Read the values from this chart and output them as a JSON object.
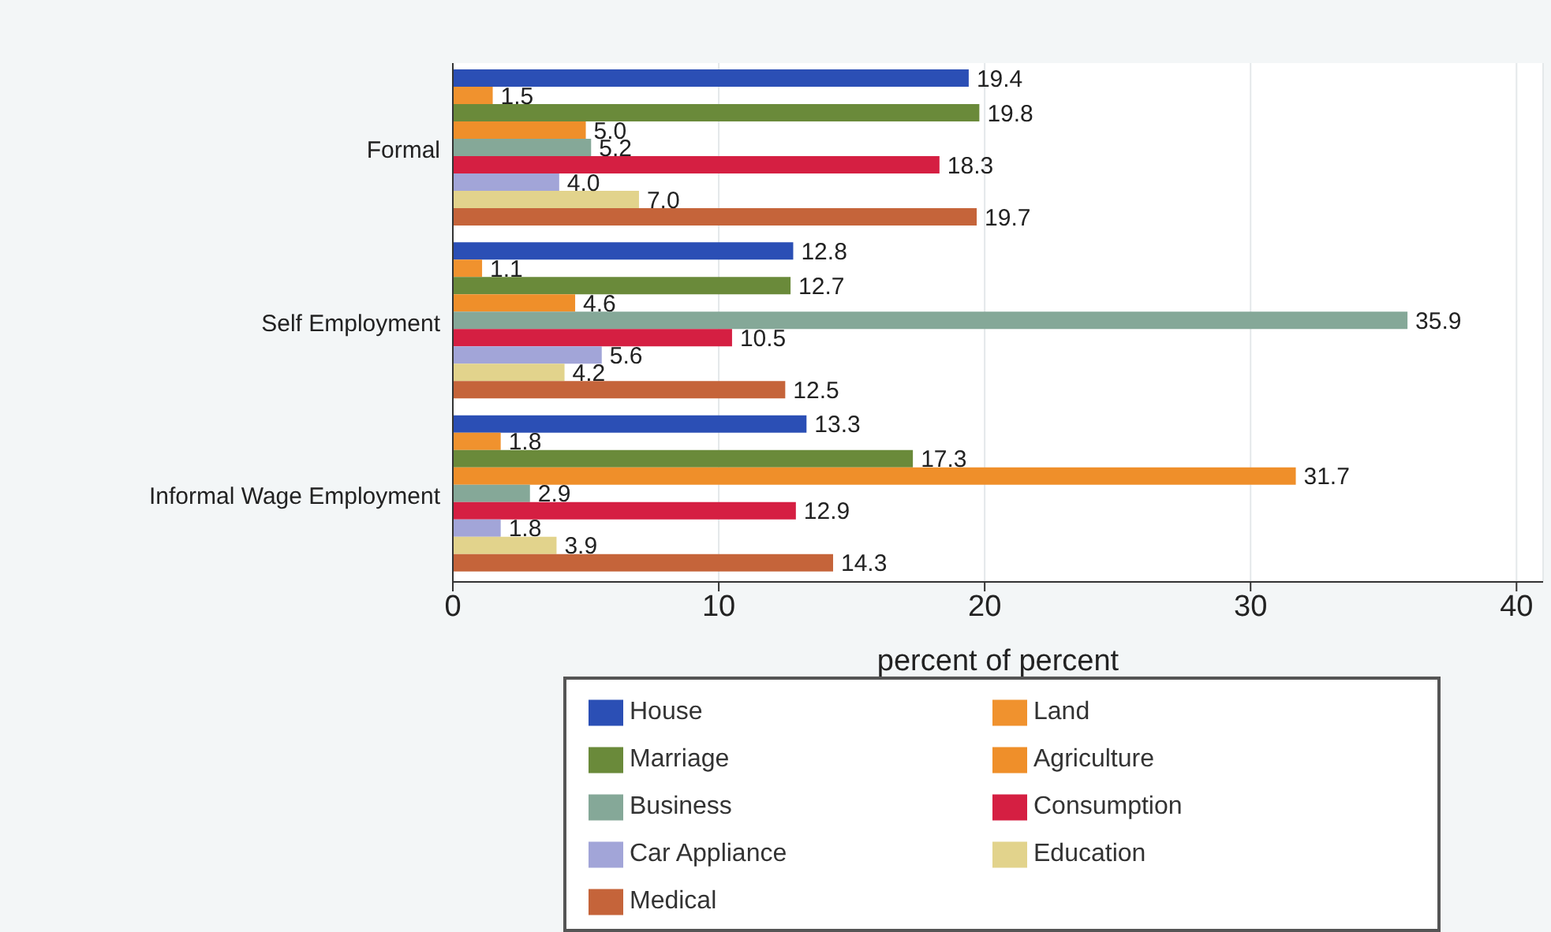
{
  "chart_data": {
    "type": "bar",
    "orientation": "horizontal",
    "categories": [
      "Formal",
      "Self Employment",
      "Informal Wage Employment"
    ],
    "xlabel": "percent of percent",
    "xlim": [
      0,
      41
    ],
    "xticks": [
      0,
      10,
      20,
      30,
      40
    ],
    "grid": "x",
    "legend": "bottom",
    "series": [
      {
        "name": "House",
        "color": "#2b4fb5",
        "values": [
          19.4,
          12.8,
          13.3
        ],
        "value_labels": [
          "19.4",
          "12.8",
          "13.3"
        ]
      },
      {
        "name": "Land",
        "color": "#f0922e",
        "values": [
          1.5,
          1.1,
          1.8
        ],
        "value_labels": [
          "1.5",
          "1.1",
          "1.8"
        ]
      },
      {
        "name": "Marriage",
        "color": "#6a8a3a",
        "values": [
          19.8,
          12.7,
          17.3
        ],
        "value_labels": [
          "19.8",
          "12.7",
          "17.3"
        ]
      },
      {
        "name": "Agriculture",
        "color": "#ef8f2a",
        "values": [
          5.0,
          4.6,
          31.7
        ],
        "value_labels": [
          "5.0",
          "4.6",
          "31.7"
        ]
      },
      {
        "name": "Business",
        "color": "#85a898",
        "values": [
          5.2,
          35.9,
          2.9
        ],
        "value_labels": [
          "5.2",
          "35.9",
          "2.9"
        ]
      },
      {
        "name": "Consumption",
        "color": "#d51f42",
        "values": [
          18.3,
          10.5,
          12.9
        ],
        "value_labels": [
          "18.3",
          "10.5",
          "12.9"
        ]
      },
      {
        "name": "Car Appliance",
        "color": "#a2a5d8",
        "values": [
          4.0,
          5.6,
          1.8
        ],
        "value_labels": [
          "4.0",
          "5.6",
          "1.8"
        ]
      },
      {
        "name": "Education",
        "color": "#e2d38c",
        "values": [
          7.0,
          4.2,
          3.9
        ],
        "value_labels": [
          "7.0",
          "4.2",
          "3.9"
        ]
      },
      {
        "name": "Medical",
        "color": "#c5643a",
        "values": [
          19.7,
          12.5,
          14.3
        ],
        "value_labels": [
          "19.7",
          "12.5",
          "14.3"
        ]
      }
    ]
  }
}
